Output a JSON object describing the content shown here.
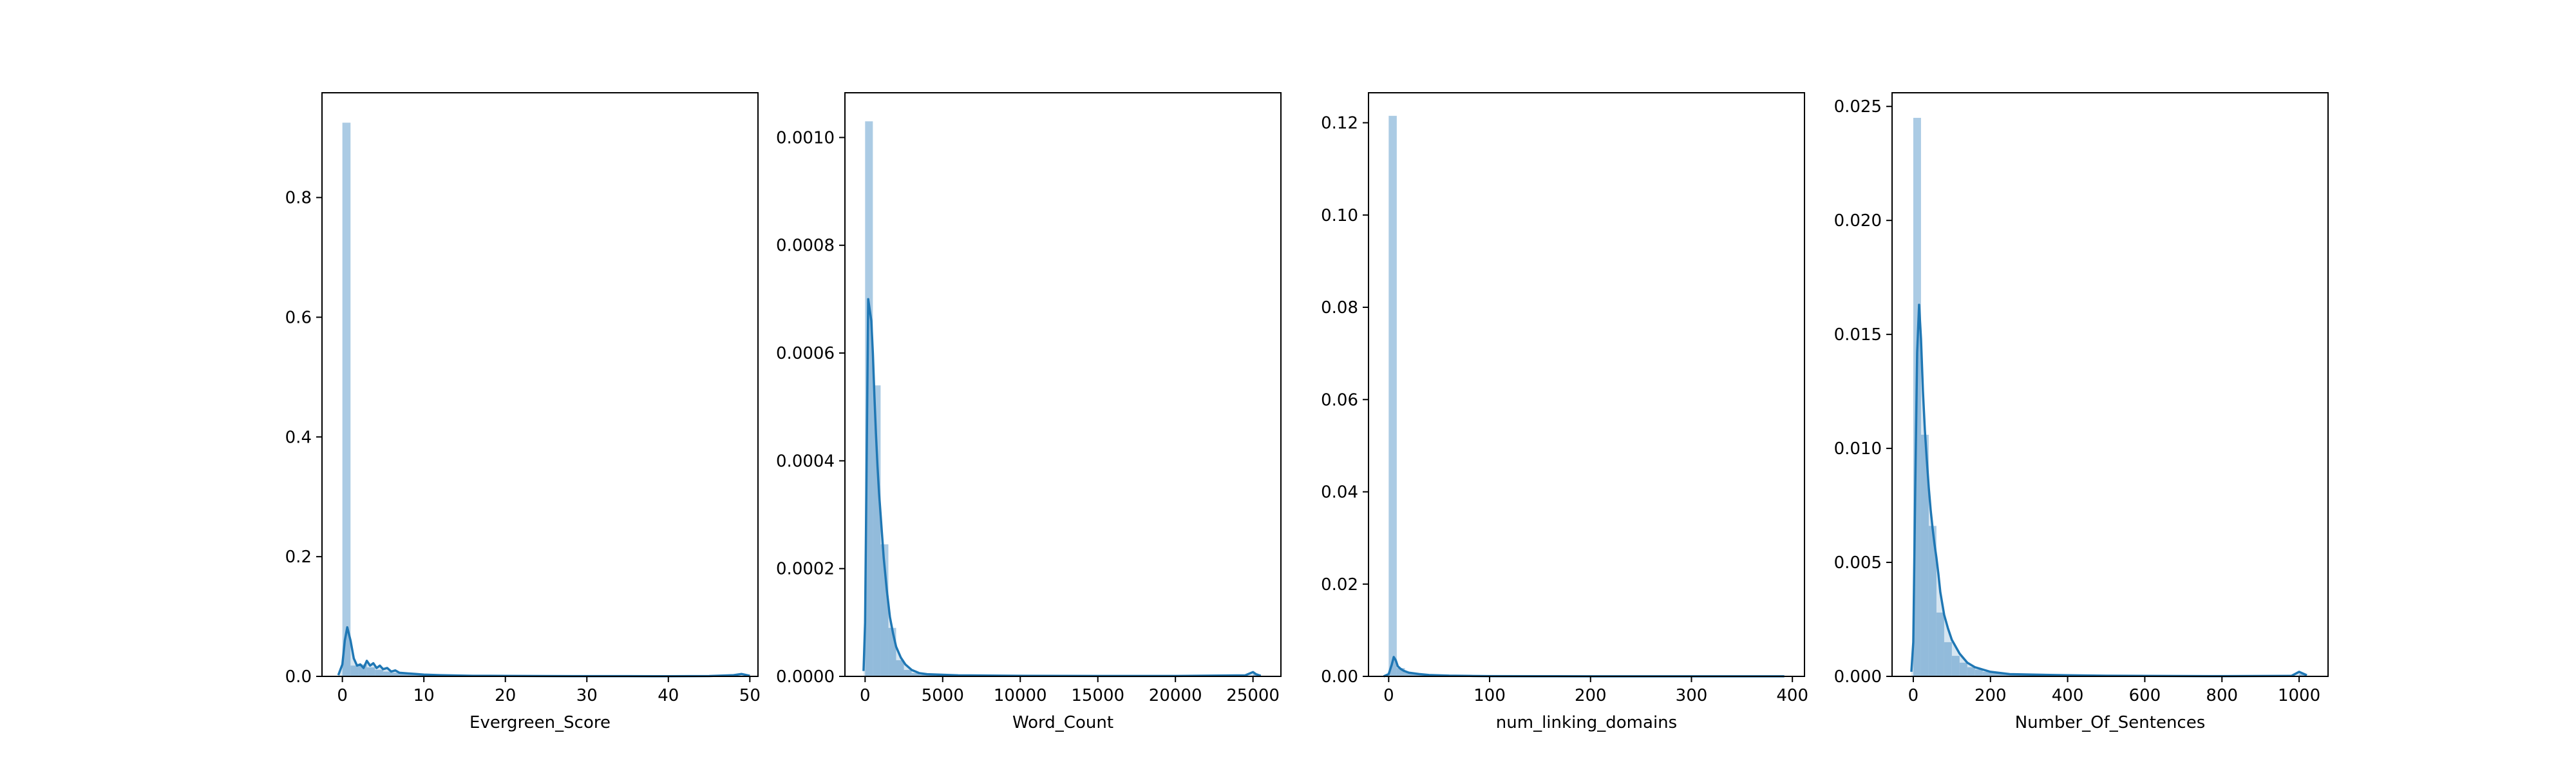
{
  "figure": {
    "background": "#ffffff",
    "hist_color": "#a6c8e3",
    "kde_color": "#1f77b4"
  },
  "chart_data": [
    {
      "type": "histogram",
      "xlabel": "Evergreen_Score",
      "ylabel": "",
      "xlim": [
        -2.5,
        51.0
      ],
      "ylim": [
        0,
        0.975
      ],
      "xticks": [
        0,
        10,
        20,
        30,
        40,
        50
      ],
      "xtick_labels": [
        "0",
        "10",
        "20",
        "30",
        "40",
        "50"
      ],
      "yticks": [
        0.0,
        0.2,
        0.4,
        0.6,
        0.8
      ],
      "ytick_labels": [
        "0.0",
        "0.2",
        "0.4",
        "0.6",
        "0.8"
      ],
      "bin_edges": [
        0,
        1,
        2,
        3,
        4,
        5,
        6,
        7,
        8,
        9,
        10,
        11,
        12,
        13,
        14,
        15,
        16,
        17,
        18,
        19,
        20,
        22,
        24,
        26,
        28,
        30,
        34,
        38,
        42,
        46,
        50
      ],
      "bin_heights": [
        0.925,
        0.018,
        0.02,
        0.015,
        0.011,
        0.008,
        0.006,
        0.005,
        0.004,
        0.003,
        0.003,
        0.002,
        0.002,
        0.0015,
        0.0012,
        0.001,
        0.0008,
        0.0006,
        0.0005,
        0.0004,
        0.0003,
        0.0003,
        0.0002,
        0.0002,
        0.0002,
        0.0001,
        0.0001,
        0.0001,
        0.0001,
        0.0002
      ],
      "kde_x": [
        -0.5,
        0,
        0.3,
        0.6,
        1,
        1.4,
        1.8,
        2.2,
        2.6,
        3,
        3.4,
        3.8,
        4.2,
        4.6,
        5,
        5.5,
        6,
        6.5,
        7,
        8,
        9,
        10,
        12,
        14,
        16,
        20,
        25,
        30,
        35,
        40,
        45,
        48,
        49,
        50
      ],
      "kde_y": [
        0.002,
        0.02,
        0.06,
        0.082,
        0.06,
        0.03,
        0.018,
        0.02,
        0.014,
        0.026,
        0.018,
        0.022,
        0.014,
        0.018,
        0.012,
        0.014,
        0.008,
        0.01,
        0.006,
        0.005,
        0.004,
        0.003,
        0.002,
        0.0015,
        0.001,
        0.0008,
        0.0005,
        0.0004,
        0.0004,
        0.0003,
        0.0005,
        0.002,
        0.004,
        0.001
      ]
    },
    {
      "type": "histogram",
      "xlabel": "Word_Count",
      "ylabel": "",
      "xlim": [
        -1300,
        26800
      ],
      "ylim": [
        0,
        0.001083
      ],
      "xticks": [
        0,
        5000,
        10000,
        15000,
        20000,
        25000
      ],
      "xtick_labels": [
        "0",
        "5000",
        "10000",
        "15000",
        "20000",
        "25000"
      ],
      "yticks": [
        0.0,
        0.0002,
        0.0004,
        0.0006,
        0.0008,
        0.001
      ],
      "ytick_labels": [
        "0.0000",
        "0.0002",
        "0.0004",
        "0.0006",
        "0.0008",
        "0.0010"
      ],
      "bin_edges": [
        0,
        500,
        1000,
        1500,
        2000,
        2500,
        3000,
        3500,
        4000,
        4500,
        5000,
        6000,
        7000,
        8000,
        10000,
        12000,
        15000,
        18000,
        21000,
        24000,
        25000,
        25500
      ],
      "bin_heights": [
        0.00103,
        0.00054,
        0.000245,
        9e-05,
        3e-05,
        1.2e-05,
        6e-06,
        3e-06,
        2e-06,
        1e-06,
        1e-06,
        6e-07,
        4e-07,
        3e-07,
        2e-07,
        1e-07,
        1e-07,
        1e-07,
        1e-07,
        5e-07,
        4e-06
      ],
      "kde_x": [
        -100,
        0,
        100,
        200,
        300,
        400,
        500,
        600,
        700,
        800,
        900,
        1000,
        1200,
        1400,
        1600,
        1800,
        2000,
        2300,
        2600,
        3000,
        3500,
        4000,
        5000,
        6000,
        8000,
        10000,
        15000,
        20000,
        24500,
        25000,
        25200,
        25500
      ],
      "kde_y": [
        1e-05,
        0.0001,
        0.0004,
        0.0007,
        0.00068,
        0.00066,
        0.0006,
        0.00052,
        0.00045,
        0.00039,
        0.00034,
        0.0003,
        0.00022,
        0.00016,
        0.00011,
        8e-05,
        5.5e-05,
        3.5e-05,
        2.2e-05,
        1.2e-05,
        6e-06,
        4e-06,
        3e-06,
        2e-06,
        1.5e-06,
        1e-06,
        8e-07,
        8e-07,
        2e-06,
        8e-06,
        4e-06,
        1e-06
      ]
    },
    {
      "type": "histogram",
      "xlabel": "num_linking_domains",
      "ylabel": "",
      "xlim": [
        -20,
        412
      ],
      "ylim": [
        0,
        0.1265
      ],
      "xticks": [
        0,
        100,
        200,
        300,
        400
      ],
      "xtick_labels": [
        "0",
        "100",
        "200",
        "300",
        "400"
      ],
      "yticks": [
        0.0,
        0.02,
        0.04,
        0.06,
        0.08,
        0.1,
        0.12
      ],
      "ytick_labels": [
        "0.00",
        "0.02",
        "0.04",
        "0.06",
        "0.08",
        "0.10",
        "0.12"
      ],
      "bin_edges": [
        0,
        8,
        16,
        24,
        32,
        40,
        60,
        80,
        100,
        150,
        200,
        250,
        300,
        350,
        392
      ],
      "bin_heights": [
        0.1215,
        0.0018,
        0.0009,
        0.0005,
        0.0003,
        0.0002,
        0.0001,
        8e-05,
        5e-05,
        3e-05,
        2e-05,
        1e-05,
        1e-05,
        1e-05
      ],
      "kde_x": [
        -5,
        0,
        3,
        5,
        7,
        9,
        12,
        15,
        20,
        30,
        40,
        60,
        80,
        100,
        150,
        200,
        250,
        300,
        350,
        392
      ],
      "kde_y": [
        0.0,
        0.0005,
        0.0025,
        0.0042,
        0.0035,
        0.0022,
        0.0016,
        0.0012,
        0.0008,
        0.0005,
        0.0003,
        0.00015,
        0.0001,
        5e-05,
        3e-05,
        2e-05,
        1e-05,
        1e-05,
        1e-05,
        1e-05
      ]
    },
    {
      "type": "histogram",
      "xlabel": "Number_Of_Sentences",
      "ylabel": "",
      "xlim": [
        -55,
        1075
      ],
      "ylim": [
        0,
        0.0256
      ],
      "xticks": [
        0,
        200,
        400,
        600,
        800,
        1000
      ],
      "xtick_labels": [
        "0",
        "200",
        "400",
        "600",
        "800",
        "1000"
      ],
      "yticks": [
        0.0,
        0.005,
        0.01,
        0.015,
        0.02,
        0.025
      ],
      "ytick_labels": [
        "0.000",
        "0.005",
        "0.010",
        "0.015",
        "0.020",
        "0.025"
      ],
      "bin_edges": [
        0,
        20,
        40,
        60,
        80,
        100,
        120,
        140,
        160,
        180,
        200,
        240,
        280,
        320,
        400,
        500,
        600,
        700,
        800,
        900,
        1000,
        1020
      ],
      "bin_heights": [
        0.0245,
        0.0106,
        0.0066,
        0.0028,
        0.0015,
        0.0009,
        0.0006,
        0.0004,
        0.0003,
        0.0002,
        0.00015,
        0.0001,
        6e-05,
        4e-05,
        3e-05,
        2e-05,
        1e-05,
        1e-05,
        1e-05,
        1e-05,
        0.0001
      ],
      "kde_x": [
        -5,
        0,
        5,
        10,
        15,
        20,
        25,
        30,
        35,
        40,
        45,
        50,
        55,
        60,
        65,
        70,
        80,
        90,
        100,
        120,
        140,
        160,
        180,
        200,
        250,
        300,
        400,
        500,
        600,
        800,
        980,
        1000,
        1020
      ],
      "kde_y": [
        0.0002,
        0.0015,
        0.0082,
        0.0142,
        0.0163,
        0.0148,
        0.0125,
        0.0108,
        0.0095,
        0.0083,
        0.0073,
        0.0065,
        0.0058,
        0.0052,
        0.0045,
        0.0037,
        0.0027,
        0.0021,
        0.0016,
        0.001,
        0.0006,
        0.0004,
        0.0003,
        0.0002,
        0.0001,
        8e-05,
        5e-05,
        3e-05,
        2e-05,
        1e-05,
        2e-05,
        0.0002,
        5e-05
      ]
    }
  ]
}
